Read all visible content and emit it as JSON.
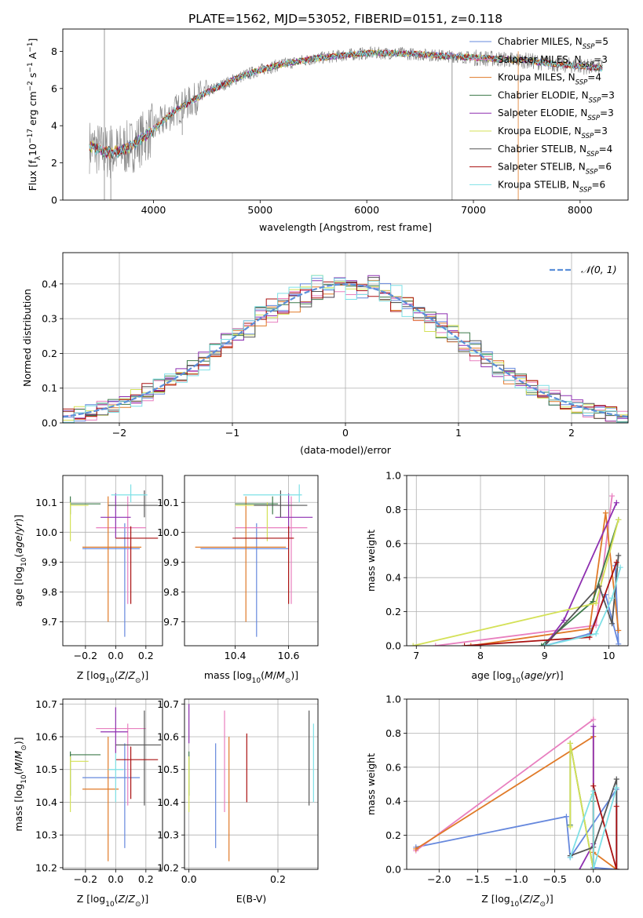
{
  "title": "PLATE=1562, MJD=53052, FIBERID=0151, z=0.118",
  "colors": {
    "chabrier_miles": "#6688dd",
    "salpeter_miles": "#e87fbf",
    "kroupa_miles": "#e07a28",
    "chabrier_elodie": "#3d7a4a",
    "salpeter_elodie": "#8e2fb0",
    "kroupa_elodie": "#d4e157",
    "chabrier_stelib": "#555555",
    "salpeter_stelib": "#aa1111",
    "kroupa_stelib": "#7ee0e6",
    "spectrum_data": "#808080",
    "gaussian": "#5b8fd9",
    "grid": "#b0b0b0"
  },
  "chart_data": [
    {
      "id": "spectrum",
      "type": "line",
      "xlabel": "wavelength [Angstrom, rest frame]",
      "ylabel": "Flux [f_λ 10^-17 erg cm^-2 s^-1 A^-1]",
      "xlim": [
        3150,
        8450
      ],
      "ylim": [
        0,
        9.2
      ],
      "xticks": [
        4000,
        5000,
        6000,
        7000,
        8000
      ],
      "yticks": [
        0,
        2,
        4,
        6,
        8
      ],
      "grid": false,
      "legend_position": "right",
      "legend": [
        {
          "label": "Chabrier MILES, N",
          "sub": "SSP",
          "tail": "=5",
          "color_key": "chabrier_miles"
        },
        {
          "label": "Salpeter MILES, N",
          "sub": "SSP",
          "tail": "=3",
          "color_key": "salpeter_miles"
        },
        {
          "label": "Kroupa MILES, N",
          "sub": "SSP",
          "tail": "=4",
          "color_key": "kroupa_miles"
        },
        {
          "label": "Chabrier ELODIE, N",
          "sub": "SSP",
          "tail": "=3",
          "color_key": "chabrier_elodie"
        },
        {
          "label": "Salpeter ELODIE, N",
          "sub": "SSP",
          "tail": "=3",
          "color_key": "salpeter_elodie"
        },
        {
          "label": "Kroupa ELODIE, N",
          "sub": "SSP",
          "tail": "=3",
          "color_key": "kroupa_elodie"
        },
        {
          "label": "Chabrier STELIB, N",
          "sub": "SSP",
          "tail": "=4",
          "color_key": "chabrier_stelib"
        },
        {
          "label": "Salpeter STELIB, N",
          "sub": "SSP",
          "tail": "=6",
          "color_key": "salpeter_stelib"
        },
        {
          "label": "Kroupa STELIB, N",
          "sub": "SSP",
          "tail": "=6",
          "color_key": "kroupa_stelib"
        }
      ],
      "continuum": {
        "x": [
          3400,
          3600,
          3800,
          4000,
          4200,
          4500,
          4800,
          5000,
          5200,
          5500,
          5800,
          6000,
          6300,
          6600,
          6900,
          7200,
          7500,
          7800,
          8000,
          8200
        ],
        "y": [
          2.9,
          2.5,
          2.9,
          3.8,
          4.8,
          5.8,
          6.6,
          7.0,
          7.3,
          7.6,
          7.8,
          7.9,
          7.9,
          7.8,
          7.7,
          7.6,
          7.5,
          7.3,
          7.2,
          7.1
        ]
      }
    },
    {
      "id": "residual-histogram",
      "type": "histogram",
      "xlabel": "(data-model)/error",
      "ylabel": "Normed distribution",
      "xlim": [
        -2.5,
        2.5
      ],
      "ylim": [
        0,
        0.49
      ],
      "xticks": [
        -2,
        -1,
        0,
        1,
        2
      ],
      "yticks": [
        0.0,
        0.1,
        0.2,
        0.3,
        0.4
      ],
      "grid": true,
      "legend_position": "top-right",
      "legend_label": "𝒩(0, 1)",
      "bin_width": 0.1,
      "gaussian": {
        "mean": 0,
        "sigma": 1
      }
    },
    {
      "id": "age-vs-z",
      "type": "errorbar",
      "xlabel": "Z [log10(Z/Z⊙)]",
      "ylabel": "age [log10(age/yr)]",
      "xlim": [
        -0.35,
        0.31
      ],
      "ylim": [
        9.62,
        10.19
      ],
      "xticks": [
        -0.2,
        0.0,
        0.2
      ],
      "yticks": [
        9.7,
        9.8,
        9.9,
        10.0,
        10.1
      ],
      "grid": true,
      "points": [
        {
          "color_key": "chabrier_miles",
          "x": 0.06,
          "xlo": -0.22,
          "xhi": 0.16,
          "y": 9.945,
          "ylo": 9.65,
          "yhi": 10.03
        },
        {
          "color_key": "salpeter_miles",
          "x": 0.08,
          "xlo": -0.13,
          "xhi": 0.2,
          "y": 10.015,
          "ylo": 9.76,
          "yhi": 10.12
        },
        {
          "color_key": "kroupa_miles",
          "x": -0.05,
          "xlo": -0.22,
          "xhi": 0.17,
          "y": 9.95,
          "ylo": 9.7,
          "yhi": 10.12
        },
        {
          "color_key": "chabrier_elodie",
          "x": -0.3,
          "xlo": -0.3,
          "xhi": -0.1,
          "y": 10.095,
          "ylo": 10.06,
          "yhi": 10.12
        },
        {
          "color_key": "salpeter_elodie",
          "x": 0.0,
          "xlo": -0.1,
          "xhi": 0.1,
          "y": 10.05,
          "ylo": 9.98,
          "yhi": 10.13
        },
        {
          "color_key": "kroupa_elodie",
          "x": -0.3,
          "xlo": -0.3,
          "xhi": -0.18,
          "y": 10.09,
          "ylo": 9.97,
          "yhi": 10.1
        },
        {
          "color_key": "chabrier_stelib",
          "x": 0.19,
          "xlo": -0.05,
          "xhi": 0.28,
          "y": 10.09,
          "ylo": 10.05,
          "yhi": 10.14
        },
        {
          "color_key": "salpeter_stelib",
          "x": 0.1,
          "xlo": 0.0,
          "xhi": 0.28,
          "y": 9.98,
          "ylo": 9.76,
          "yhi": 10.02
        },
        {
          "color_key": "kroupa_stelib",
          "x": 0.1,
          "xlo": -0.03,
          "xhi": 0.21,
          "y": 10.125,
          "ylo": 10.1,
          "yhi": 10.16
        }
      ]
    },
    {
      "id": "age-vs-mass",
      "type": "errorbar",
      "xlabel": "mass [log10(M/M⊙)]",
      "xlim": [
        10.21,
        10.71
      ],
      "ylim": [
        9.62,
        10.19
      ],
      "xticks": [
        10.2,
        10.4,
        10.6
      ],
      "yticks": [
        9.7,
        9.8,
        9.9,
        10.0,
        10.1
      ],
      "grid": true,
      "points": [
        {
          "color_key": "chabrier_miles",
          "x": 10.48,
          "xlo": 10.27,
          "xhi": 10.6,
          "y": 9.945,
          "ylo": 9.65,
          "yhi": 10.03
        },
        {
          "color_key": "salpeter_miles",
          "x": 10.61,
          "xlo": 10.4,
          "xhi": 10.67,
          "y": 10.015,
          "ylo": 9.76,
          "yhi": 10.12
        },
        {
          "color_key": "kroupa_miles",
          "x": 10.44,
          "xlo": 10.25,
          "xhi": 10.59,
          "y": 9.95,
          "ylo": 9.7,
          "yhi": 10.12
        },
        {
          "color_key": "chabrier_elodie",
          "x": 10.54,
          "xlo": 10.4,
          "xhi": 10.56,
          "y": 10.095,
          "ylo": 10.06,
          "yhi": 10.12
        },
        {
          "color_key": "salpeter_elodie",
          "x": 10.6,
          "xlo": 10.55,
          "xhi": 10.69,
          "y": 10.05,
          "ylo": 9.98,
          "yhi": 10.13
        },
        {
          "color_key": "kroupa_elodie",
          "x": 10.52,
          "xlo": 10.4,
          "xhi": 10.53,
          "y": 10.09,
          "ylo": 9.97,
          "yhi": 10.1
        },
        {
          "color_key": "chabrier_stelib",
          "x": 10.57,
          "xlo": 10.47,
          "xhi": 10.67,
          "y": 10.09,
          "ylo": 10.05,
          "yhi": 10.14
        },
        {
          "color_key": "salpeter_stelib",
          "x": 10.6,
          "xlo": 10.39,
          "xhi": 10.62,
          "y": 9.98,
          "ylo": 9.76,
          "yhi": 10.02
        },
        {
          "color_key": "kroupa_stelib",
          "x": 10.64,
          "xlo": 10.43,
          "xhi": 10.65,
          "y": 10.125,
          "ylo": 10.1,
          "yhi": 10.16
        }
      ]
    },
    {
      "id": "mass-weight-vs-age",
      "type": "line",
      "xlabel": "age [log10(age/yr)]",
      "ylabel": "mass weight",
      "xlim": [
        6.85,
        10.3
      ],
      "ylim": [
        0,
        1.0
      ],
      "xticks": [
        7,
        8,
        9,
        10
      ],
      "yticks": [
        0.0,
        0.2,
        0.4,
        0.6,
        0.8,
        1.0
      ],
      "grid": true,
      "series": [
        {
          "color_key": "chabrier_miles",
          "x": [
            9.0,
            9.7,
            9.95,
            10.15,
            10.1
          ],
          "y": [
            0.0,
            0.07,
            0.3,
            0.01,
            0.47
          ]
        },
        {
          "color_key": "salpeter_miles",
          "x": [
            7.3,
            9.8,
            10.05
          ],
          "y": [
            0.0,
            0.12,
            0.88
          ]
        },
        {
          "color_key": "kroupa_miles",
          "x": [
            7.85,
            9.7,
            9.95,
            10.15
          ],
          "y": [
            0.0,
            0.1,
            0.78,
            0.09
          ]
        },
        {
          "color_key": "chabrier_elodie",
          "x": [
            8.95,
            9.75,
            10.15
          ],
          "y": [
            0.0,
            0.26,
            0.74
          ]
        },
        {
          "color_key": "salpeter_elodie",
          "x": [
            9.0,
            9.3,
            10.12
          ],
          "y": [
            0.0,
            0.15,
            0.84
          ]
        },
        {
          "color_key": "kroupa_elodie",
          "x": [
            6.95,
            9.8,
            10.15
          ],
          "y": [
            0.0,
            0.25,
            0.74
          ]
        },
        {
          "color_key": "chabrier_stelib",
          "x": [
            9.0,
            9.85,
            10.05,
            10.15
          ],
          "y": [
            0.0,
            0.35,
            0.13,
            0.53
          ]
        },
        {
          "color_key": "salpeter_stelib",
          "x": [
            7.75,
            9.7,
            10.12
          ],
          "y": [
            0.0,
            0.05,
            0.49
          ]
        },
        {
          "color_key": "kroupa_stelib",
          "x": [
            9.0,
            9.8,
            10.05,
            10.18
          ],
          "y": [
            0.0,
            0.07,
            0.28,
            0.46
          ]
        }
      ]
    },
    {
      "id": "mass-vs-z",
      "type": "errorbar",
      "xlabel": "Z [log10(Z/Z⊙)]",
      "ylabel": "mass [log10(M/M⊙)]",
      "xlim": [
        -0.35,
        0.31
      ],
      "ylim": [
        10.195,
        10.715
      ],
      "xticks": [
        -0.2,
        0.0,
        0.2
      ],
      "yticks": [
        10.2,
        10.3,
        10.4,
        10.5,
        10.6,
        10.7
      ],
      "grid": true,
      "points": [
        {
          "color_key": "chabrier_miles",
          "x": 0.06,
          "xlo": -0.22,
          "xhi": 0.16,
          "y": 10.475,
          "ylo": 10.26,
          "yhi": 10.58
        },
        {
          "color_key": "salpeter_miles",
          "x": 0.08,
          "xlo": -0.13,
          "xhi": 0.2,
          "y": 10.625,
          "ylo": 10.39,
          "yhi": 10.64
        },
        {
          "color_key": "kroupa_miles",
          "x": -0.05,
          "xlo": -0.22,
          "xhi": 0.02,
          "y": 10.44,
          "ylo": 10.22,
          "yhi": 10.6
        },
        {
          "color_key": "chabrier_elodie",
          "x": -0.3,
          "xlo": -0.3,
          "xhi": -0.1,
          "y": 10.545,
          "ylo": 10.42,
          "yhi": 10.555
        },
        {
          "color_key": "salpeter_elodie",
          "x": 0.0,
          "xlo": -0.1,
          "xhi": 0.08,
          "y": 10.615,
          "ylo": 10.55,
          "yhi": 10.69
        },
        {
          "color_key": "kroupa_elodie",
          "x": -0.3,
          "xlo": -0.3,
          "xhi": -0.18,
          "y": 10.525,
          "ylo": 10.37,
          "yhi": 10.54
        },
        {
          "color_key": "chabrier_stelib",
          "x": 0.19,
          "xlo": 0.0,
          "xhi": 0.3,
          "y": 10.575,
          "ylo": 10.39,
          "yhi": 10.68
        },
        {
          "color_key": "salpeter_stelib",
          "x": 0.1,
          "xlo": 0.0,
          "xhi": 0.28,
          "y": 10.53,
          "ylo": 10.41,
          "yhi": 10.57
        },
        {
          "color_key": "kroupa_stelib",
          "x": 0.0,
          "xlo": -0.05,
          "xhi": 0.05,
          "y": 10.5,
          "ylo": 10.4,
          "yhi": 10.55
        }
      ]
    },
    {
      "id": "mass-vs-ebv",
      "type": "errorbar",
      "xlabel": "E(B-V)",
      "xlim": [
        -0.01,
        0.29
      ],
      "ylim": [
        10.195,
        10.715
      ],
      "xticks": [
        0.0,
        0.2
      ],
      "yticks": [
        10.2,
        10.3,
        10.4,
        10.5,
        10.6,
        10.7
      ],
      "grid": true,
      "points": [
        {
          "color_key": "chabrier_miles",
          "x": 0.06,
          "y": 10.475,
          "ylo": 10.26,
          "yhi": 10.58
        },
        {
          "color_key": "salpeter_miles",
          "x": 0.08,
          "y": 10.625,
          "ylo": 10.37,
          "yhi": 10.68
        },
        {
          "color_key": "kroupa_miles",
          "x": 0.09,
          "y": 10.44,
          "ylo": 10.22,
          "yhi": 10.6
        },
        {
          "color_key": "chabrier_elodie",
          "x": 0.0,
          "y": 10.545,
          "ylo": 10.42,
          "yhi": 10.555
        },
        {
          "color_key": "salpeter_elodie",
          "x": 0.0,
          "y": 10.615,
          "ylo": 10.58,
          "yhi": 10.7
        },
        {
          "color_key": "kroupa_elodie",
          "x": 0.0,
          "y": 10.525,
          "ylo": 10.37,
          "yhi": 10.54
        },
        {
          "color_key": "chabrier_stelib",
          "x": 0.27,
          "y": 10.575,
          "ylo": 10.39,
          "yhi": 10.68
        },
        {
          "color_key": "salpeter_stelib",
          "x": 0.13,
          "y": 10.53,
          "ylo": 10.4,
          "yhi": 10.61
        },
        {
          "color_key": "kroupa_stelib",
          "x": 0.28,
          "y": 10.5,
          "ylo": 10.4,
          "yhi": 10.64
        }
      ]
    },
    {
      "id": "mass-weight-vs-z",
      "type": "line",
      "xlabel": "Z [log10(Z/Z⊙)]",
      "ylabel": "mass weight",
      "xlim": [
        -2.42,
        0.45
      ],
      "ylim": [
        0,
        1.0
      ],
      "xticks": [
        -2.0,
        -1.5,
        -1.0,
        -0.5,
        0.0
      ],
      "yticks": [
        0.0,
        0.2,
        0.4,
        0.6,
        0.8,
        1.0
      ],
      "grid": true,
      "series": [
        {
          "color_key": "chabrier_miles",
          "x": [
            -2.3,
            -0.35,
            -0.3,
            0.3,
            0.3,
            0.0
          ],
          "y": [
            0.13,
            0.31,
            0.07,
            0.47,
            0.0,
            0.01
          ]
        },
        {
          "color_key": "salpeter_miles",
          "x": [
            -2.3,
            0.0
          ],
          "y": [
            0.11,
            0.88
          ]
        },
        {
          "color_key": "kroupa_miles",
          "x": [
            -2.3,
            0.0,
            0.0,
            0.3
          ],
          "y": [
            0.12,
            0.78,
            0.1,
            0.0
          ]
        },
        {
          "color_key": "chabrier_elodie",
          "x": [
            -0.3,
            -0.3,
            0.0,
            0.0
          ],
          "y": [
            0.26,
            0.74,
            0.0,
            0.4
          ]
        },
        {
          "color_key": "salpeter_elodie",
          "x": [
            -0.3,
            0.0,
            0.0
          ],
          "y": [
            -0.1,
            0.15,
            0.84
          ]
        },
        {
          "color_key": "kroupa_elodie",
          "x": [
            -0.3,
            -0.3,
            0.0,
            0.0
          ],
          "y": [
            0.25,
            0.74,
            0.0,
            0.44
          ]
        },
        {
          "color_key": "chabrier_stelib",
          "x": [
            -0.3,
            0.0,
            0.3,
            0.3
          ],
          "y": [
            0.08,
            0.13,
            0.53,
            0.0
          ]
        },
        {
          "color_key": "salpeter_stelib",
          "x": [
            0.0,
            0.0,
            0.3,
            0.3
          ],
          "y": [
            0.0,
            0.49,
            0.0,
            0.37
          ]
        },
        {
          "color_key": "kroupa_stelib",
          "x": [
            -0.3,
            0.0,
            0.0,
            0.3
          ],
          "y": [
            0.07,
            0.46,
            0.0,
            0.48
          ]
        }
      ]
    }
  ]
}
